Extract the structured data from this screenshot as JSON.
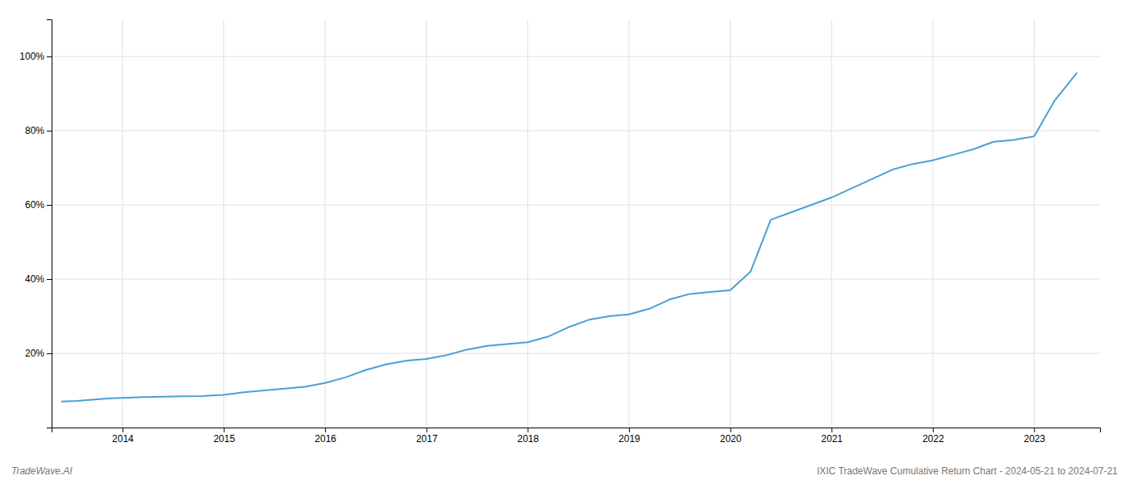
{
  "chart_data": {
    "type": "line",
    "color": "#4a9fd4",
    "x": [
      2013.4,
      2013.55,
      2013.7,
      2013.85,
      2014.0,
      2014.2,
      2014.4,
      2014.6,
      2014.8,
      2015.0,
      2015.2,
      2015.4,
      2015.6,
      2015.8,
      2016.0,
      2016.2,
      2016.4,
      2016.6,
      2016.8,
      2017.0,
      2017.2,
      2017.4,
      2017.6,
      2017.8,
      2018.0,
      2018.2,
      2018.4,
      2018.6,
      2018.8,
      2019.0,
      2019.2,
      2019.4,
      2019.6,
      2019.8,
      2020.0,
      2020.2,
      2020.4,
      2020.6,
      2020.8,
      2021.0,
      2021.2,
      2021.4,
      2021.6,
      2021.8,
      2022.0,
      2022.2,
      2022.4,
      2022.6,
      2022.8,
      2023.0,
      2023.2,
      2023.42
    ],
    "values": [
      7.0,
      7.2,
      7.5,
      7.8,
      8.0,
      8.2,
      8.3,
      8.4,
      8.5,
      8.8,
      9.5,
      10.0,
      10.5,
      11.0,
      12.0,
      13.5,
      15.5,
      17.0,
      18.0,
      18.5,
      19.5,
      21.0,
      22.0,
      22.5,
      23.0,
      24.5,
      27.0,
      29.0,
      30.0,
      30.5,
      32.0,
      34.5,
      36.0,
      36.5,
      37.0,
      42.0,
      56.0,
      58.0,
      60.0,
      62.0,
      64.5,
      67.0,
      69.5,
      71.0,
      72.0,
      73.5,
      75.0,
      77.0,
      77.5,
      78.5,
      88.0,
      95.5
    ],
    "xlim": [
      2013.3,
      2023.65
    ],
    "xticks": [
      2014,
      2015,
      2016,
      2017,
      2018,
      2019,
      2020,
      2021,
      2022,
      2023
    ],
    "ylim": [
      0,
      110
    ],
    "yticks": [
      {
        "value": 20,
        "label": "20%"
      },
      {
        "value": 40,
        "label": "40%"
      },
      {
        "value": 60,
        "label": "60%"
      },
      {
        "value": 80,
        "label": "80%"
      },
      {
        "value": 100,
        "label": "100%"
      }
    ],
    "grid": true,
    "annotations": [
      "TradeWave.AI",
      "IXIC TradeWave Cumulative Return Chart - 2024-05-21 to 2024-07-21"
    ]
  }
}
